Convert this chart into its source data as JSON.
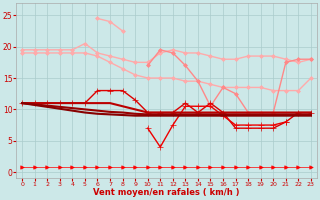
{
  "x": [
    0,
    1,
    2,
    3,
    4,
    5,
    6,
    7,
    8,
    9,
    10,
    11,
    12,
    13,
    14,
    15,
    16,
    17,
    18,
    19,
    20,
    21,
    22,
    23
  ],
  "series": [
    {
      "name": "pink_top1",
      "color": "#ffaaaa",
      "linewidth": 1.0,
      "marker": "D",
      "markersize": 2.0,
      "y": [
        19.5,
        19.5,
        19.5,
        19.5,
        19.5,
        20.5,
        19.0,
        18.5,
        18.0,
        17.5,
        17.5,
        19.0,
        19.5,
        19.0,
        19.0,
        18.5,
        18.0,
        18.0,
        18.5,
        18.5,
        18.5,
        18.0,
        17.5,
        18.0
      ]
    },
    {
      "name": "pink_top2_steep",
      "color": "#ffaaaa",
      "linewidth": 1.0,
      "marker": "D",
      "markersize": 2.0,
      "y": [
        19.0,
        19.0,
        19.0,
        19.0,
        19.0,
        19.0,
        18.5,
        17.5,
        16.5,
        15.5,
        15.0,
        15.0,
        15.0,
        14.5,
        14.5,
        14.0,
        13.5,
        13.5,
        13.5,
        13.5,
        13.0,
        13.0,
        13.0,
        15.0
      ]
    },
    {
      "name": "pink_spike",
      "color": "#ffaaaa",
      "linewidth": 1.0,
      "marker": "D",
      "markersize": 2.0,
      "y": [
        null,
        null,
        null,
        null,
        null,
        null,
        24.5,
        24.0,
        22.5,
        null,
        null,
        null,
        null,
        null,
        null,
        null,
        null,
        null,
        null,
        null,
        null,
        null,
        null,
        null
      ]
    },
    {
      "name": "pink_mid",
      "color": "#ff8888",
      "linewidth": 1.0,
      "marker": "D",
      "markersize": 2.0,
      "y": [
        null,
        null,
        null,
        null,
        null,
        null,
        null,
        null,
        null,
        null,
        17.0,
        19.5,
        19.0,
        17.0,
        14.5,
        10.5,
        13.5,
        12.5,
        9.5,
        9.5,
        9.5,
        17.5,
        18.0,
        18.0
      ]
    },
    {
      "name": "red_cross_wavy",
      "color": "#dd0000",
      "linewidth": 1.0,
      "marker": "+",
      "markersize": 4,
      "y": [
        11.0,
        11.0,
        11.0,
        11.0,
        11.0,
        11.0,
        13.0,
        13.0,
        13.0,
        11.5,
        9.5,
        9.5,
        9.5,
        11.0,
        9.5,
        11.0,
        9.5,
        7.0,
        7.0,
        7.0,
        7.0,
        8.0,
        9.5,
        9.5
      ]
    },
    {
      "name": "red_dip",
      "color": "#ee0000",
      "linewidth": 1.0,
      "marker": "+",
      "markersize": 4,
      "y": [
        null,
        null,
        null,
        null,
        null,
        null,
        null,
        null,
        null,
        null,
        7.0,
        4.0,
        7.5,
        10.5,
        10.5,
        10.5,
        9.0,
        7.5,
        7.5,
        7.5,
        7.5,
        8.0,
        null,
        null
      ]
    },
    {
      "name": "dark_red_flat1",
      "color": "#bb0000",
      "linewidth": 1.5,
      "marker": null,
      "markersize": 0,
      "y": [
        11.0,
        11.0,
        11.0,
        11.0,
        11.0,
        11.0,
        11.0,
        11.0,
        10.5,
        10.0,
        9.5,
        9.5,
        9.5,
        9.5,
        9.5,
        9.5,
        9.5,
        9.5,
        9.5,
        9.5,
        9.5,
        9.5,
        9.5,
        9.5
      ]
    },
    {
      "name": "dark_red_flat2",
      "color": "#990000",
      "linewidth": 1.5,
      "marker": null,
      "markersize": 0,
      "y": [
        11.0,
        10.8,
        10.6,
        10.4,
        10.2,
        10.0,
        9.8,
        9.6,
        9.5,
        9.3,
        9.2,
        9.2,
        9.2,
        9.2,
        9.2,
        9.2,
        9.2,
        9.2,
        9.2,
        9.2,
        9.2,
        9.2,
        9.2,
        9.2
      ]
    },
    {
      "name": "dark_red_flat3",
      "color": "#880000",
      "linewidth": 1.5,
      "marker": null,
      "markersize": 0,
      "y": [
        11.0,
        10.7,
        10.4,
        10.1,
        9.8,
        9.5,
        9.3,
        9.2,
        9.1,
        9.0,
        9.0,
        9.0,
        9.0,
        9.0,
        9.0,
        9.0,
        9.0,
        9.0,
        9.0,
        9.0,
        9.0,
        9.0,
        9.0,
        9.0
      ]
    },
    {
      "name": "arrows_row",
      "color": "#ff0000",
      "linewidth": 0.5,
      "marker": ">",
      "markersize": 2.5,
      "y": [
        0.8,
        0.8,
        0.8,
        0.8,
        0.8,
        0.8,
        0.8,
        0.8,
        0.8,
        0.8,
        0.8,
        0.8,
        0.8,
        0.8,
        0.8,
        0.8,
        0.8,
        0.8,
        0.8,
        0.8,
        0.8,
        0.8,
        0.8,
        0.8
      ]
    }
  ],
  "xlabel": "Vent moyen/en rafales ( km/h )",
  "xlim": [
    -0.5,
    23.5
  ],
  "ylim": [
    -1,
    27
  ],
  "yticks": [
    0,
    5,
    10,
    15,
    20,
    25
  ],
  "xticks": [
    0,
    1,
    2,
    3,
    4,
    5,
    6,
    7,
    8,
    9,
    10,
    11,
    12,
    13,
    14,
    15,
    16,
    17,
    18,
    19,
    20,
    21,
    22,
    23
  ],
  "bg_color": "#cce8e8",
  "grid_color": "#aacccc",
  "xlabel_color": "#cc0000",
  "tick_color": "#cc0000",
  "figsize": [
    3.2,
    2.0
  ],
  "dpi": 100
}
